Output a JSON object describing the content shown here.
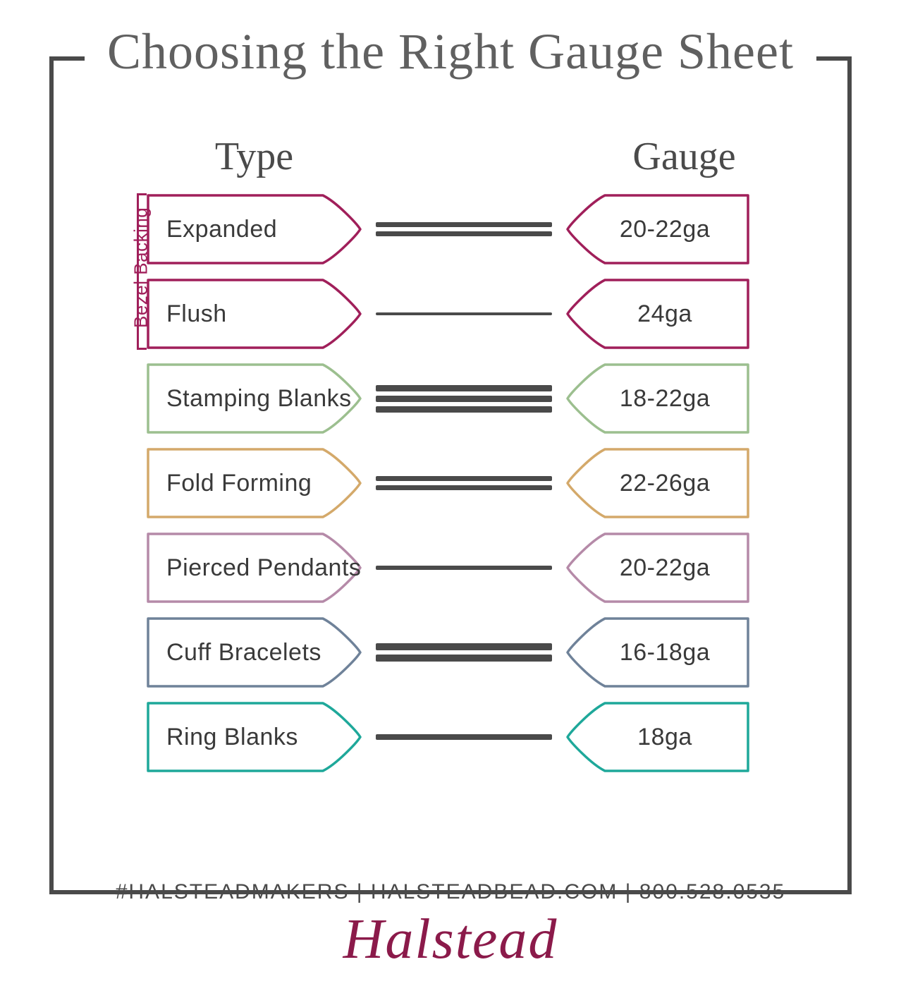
{
  "title": "Choosing the Right Gauge Sheet",
  "header_type": "Type",
  "header_gauge": "Gauge",
  "bezel_label": "Bezel Backing",
  "footer": "#HALSTEADMAKERS  |  HALSTEADBEAD.COM  |  800.528.0535",
  "logo": "Halstead",
  "colors": {
    "frame": "#4a4a4a",
    "text": "#3a3a3a",
    "line": "#4a4a4a",
    "logo": "#8b1a4a"
  },
  "rows": [
    {
      "type": "Expanded",
      "gauge": "20-22ga",
      "color": "#a01f5a",
      "lines": [
        7,
        7
      ],
      "bezel": true
    },
    {
      "type": "Flush",
      "gauge": "24ga",
      "color": "#a01f5a",
      "lines": [
        4
      ],
      "bezel": true
    },
    {
      "type": "Stamping Blanks",
      "gauge": "18-22ga",
      "color": "#9cbf8f",
      "lines": [
        9,
        9,
        9
      ],
      "bezel": false
    },
    {
      "type": "Fold Forming",
      "gauge": "22-26ga",
      "color": "#d4a96a",
      "lines": [
        7,
        7
      ],
      "bezel": false
    },
    {
      "type": "Pierced Pendants",
      "gauge": "20-22ga",
      "color": "#b58aa8",
      "lines": [
        6
      ],
      "bezel": false
    },
    {
      "type": "Cuff Bracelets",
      "gauge": "16-18ga",
      "color": "#6f8299",
      "lines": [
        10,
        10
      ],
      "bezel": false
    },
    {
      "type": "Ring Blanks",
      "gauge": "18ga",
      "color": "#1ea89a",
      "lines": [
        8
      ],
      "bezel": false
    }
  ]
}
